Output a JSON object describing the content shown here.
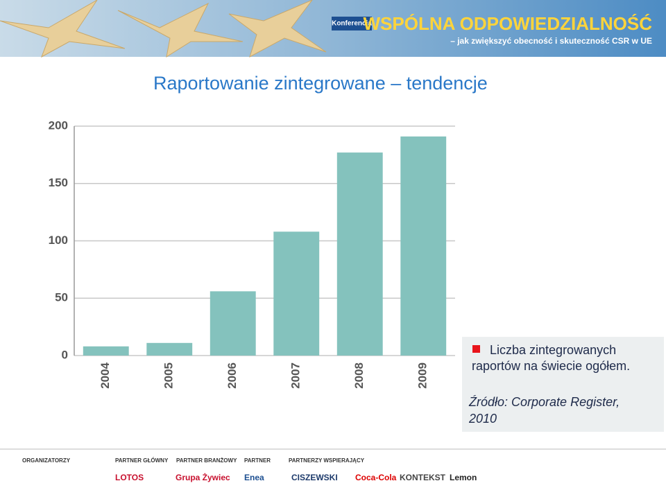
{
  "header": {
    "badge": "Konferencja",
    "title": "WSPÓLNA ODPOWIEDZIALNOŚĆ",
    "subtitle": "– jak zwiększyć obecność i skuteczność CSR w UE"
  },
  "slide_title": "Raportowanie zintegrowane – tendencje",
  "chart_data": {
    "type": "bar",
    "categories": [
      "2004",
      "2005",
      "2006",
      "2007",
      "2008",
      "2009"
    ],
    "series": [
      {
        "name": "Liczba zintegrowanych raportów na świecie ogółem.",
        "color": "#84c2bd",
        "values": [
          8,
          11,
          56,
          108,
          177,
          191
        ]
      }
    ],
    "ylim": [
      0,
      200
    ],
    "yticks": [
      0,
      50,
      100,
      150,
      200
    ],
    "grid": true,
    "legend_marker_color": "#e8141b"
  },
  "source": "Źródło: Corporate Register, 2010",
  "footer": {
    "groups": [
      "ORGANIZATORZY",
      "PARTNER GŁÓWNY",
      "PARTNER BRANŻOWY",
      "PARTNER",
      "PARTNERZY WSPIERAJĄCY"
    ],
    "logos": [
      "LOTOS",
      "Grupa Żywiec",
      "Enea",
      "CISZEWSKI",
      "Coca-Cola",
      "KONTEKST",
      "Lemon"
    ]
  }
}
